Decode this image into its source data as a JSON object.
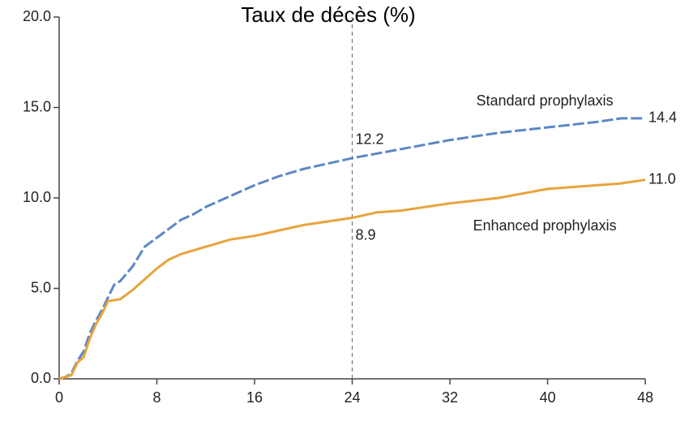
{
  "chart_data": {
    "type": "line",
    "title": "Taux de décès (%)",
    "xlim": [
      0,
      48
    ],
    "xticks": [
      0,
      8,
      16,
      24,
      32,
      40,
      48
    ],
    "ylim": [
      0,
      20
    ],
    "yticks": [
      {
        "value": 0,
        "label": "0.0"
      },
      {
        "value": 5,
        "label": "5.0"
      },
      {
        "value": 10,
        "label": "10.0"
      },
      {
        "value": 15,
        "label": "15.0"
      },
      {
        "value": 20,
        "label": "20.0"
      }
    ],
    "reference_x": 24,
    "series": [
      {
        "name": "Standard prophylaxis",
        "color": "#5b87c5",
        "dashed": true,
        "x": [
          0,
          0.5,
          1,
          1.5,
          2,
          2.5,
          3,
          3.5,
          4,
          4.5,
          5,
          6,
          7,
          8,
          9,
          10,
          11,
          12,
          14,
          16,
          18,
          20,
          22,
          24,
          28,
          32,
          36,
          40,
          44,
          46,
          48
        ],
        "values": [
          0,
          0.1,
          0.3,
          1.0,
          1.5,
          2.5,
          3.2,
          3.8,
          4.5,
          5.2,
          5.4,
          6.2,
          7.3,
          7.8,
          8.3,
          8.8,
          9.1,
          9.5,
          10.1,
          10.7,
          11.2,
          11.6,
          11.9,
          12.2,
          12.7,
          13.2,
          13.6,
          13.9,
          14.2,
          14.4,
          14.4
        ],
        "value_labels": [
          null,
          null,
          null,
          null,
          null,
          null,
          null,
          null,
          null,
          null,
          null,
          null,
          null,
          null,
          null,
          null,
          null,
          null,
          null,
          null,
          null,
          null,
          null,
          "12.2",
          null,
          null,
          null,
          null,
          null,
          null,
          "14.4"
        ]
      },
      {
        "name": "Enhanced prophylaxis",
        "color": "#e8a33d",
        "dashed": false,
        "x": [
          0,
          1,
          1.5,
          2,
          2.5,
          3,
          3.5,
          4,
          5,
          6,
          7,
          8,
          9,
          10,
          12,
          14,
          16,
          18,
          20,
          22,
          24,
          26,
          28,
          32,
          36,
          40,
          44,
          46,
          48
        ],
        "values": [
          0,
          0.2,
          0.9,
          1.2,
          2.2,
          3.0,
          3.6,
          4.3,
          4.4,
          4.9,
          5.5,
          6.1,
          6.6,
          6.9,
          7.3,
          7.7,
          7.9,
          8.2,
          8.5,
          8.7,
          8.9,
          9.2,
          9.3,
          9.7,
          10.0,
          10.5,
          10.7,
          10.8,
          11.0
        ],
        "value_labels": [
          null,
          null,
          null,
          null,
          null,
          null,
          null,
          null,
          null,
          null,
          null,
          null,
          null,
          null,
          null,
          null,
          null,
          null,
          null,
          null,
          "8.9",
          null,
          null,
          null,
          null,
          null,
          null,
          null,
          "11.0"
        ]
      }
    ]
  }
}
